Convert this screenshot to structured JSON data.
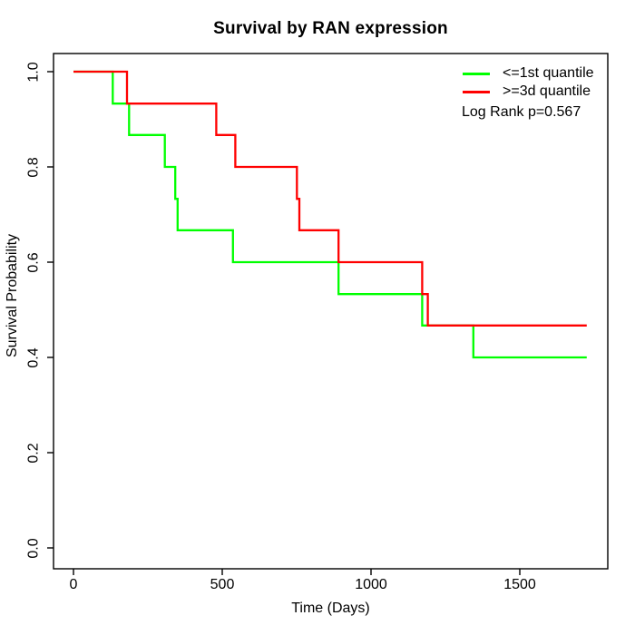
{
  "title": "Survival by RAN expression",
  "x_axis": {
    "label": "Time (Days)",
    "ticks": [
      "0",
      "500",
      "1000",
      "1500"
    ]
  },
  "y_axis": {
    "label": "Survival Probability",
    "ticks": [
      "0.0",
      "0.2",
      "0.4",
      "0.6",
      "0.8",
      "1.0"
    ]
  },
  "legend": {
    "entries": [
      {
        "label": "<=1st quantile",
        "color": "#00ff00"
      },
      {
        "label": ">=3d quantile",
        "color": "#ff0000"
      }
    ],
    "note": "Log Rank p=0.567"
  },
  "chart_data": {
    "type": "line",
    "subtype": "kaplan-meier-step",
    "title": "Survival by RAN expression",
    "xlabel": "Time (Days)",
    "ylabel": "Survival Probability",
    "xlim": [
      0,
      1800
    ],
    "ylim": [
      0.0,
      1.0
    ],
    "x_ticks": [
      0,
      500,
      1000,
      1500
    ],
    "y_ticks": [
      0.0,
      0.2,
      0.4,
      0.6,
      0.8,
      1.0
    ],
    "grid": false,
    "legend_position": "top-right",
    "annotation": "Log Rank p=0.567",
    "series": [
      {
        "name": "<=1st quantile",
        "color": "#00ff00",
        "points": [
          [
            0,
            1.0
          ],
          [
            132,
            0.933
          ],
          [
            187,
            0.867
          ],
          [
            307,
            0.8
          ],
          [
            342,
            0.733
          ],
          [
            350,
            0.667
          ],
          [
            536,
            0.6
          ],
          [
            891,
            0.533
          ],
          [
            1172,
            0.467
          ],
          [
            1344,
            0.4
          ],
          [
            1725,
            0.4
          ]
        ]
      },
      {
        "name": ">=3d quantile",
        "color": "#ff0000",
        "points": [
          [
            0,
            1.0
          ],
          [
            180,
            0.933
          ],
          [
            480,
            0.867
          ],
          [
            544,
            0.8
          ],
          [
            751,
            0.733
          ],
          [
            759,
            0.667
          ],
          [
            891,
            0.6
          ],
          [
            1172,
            0.533
          ],
          [
            1191,
            0.467
          ],
          [
            1725,
            0.467
          ]
        ]
      }
    ]
  }
}
